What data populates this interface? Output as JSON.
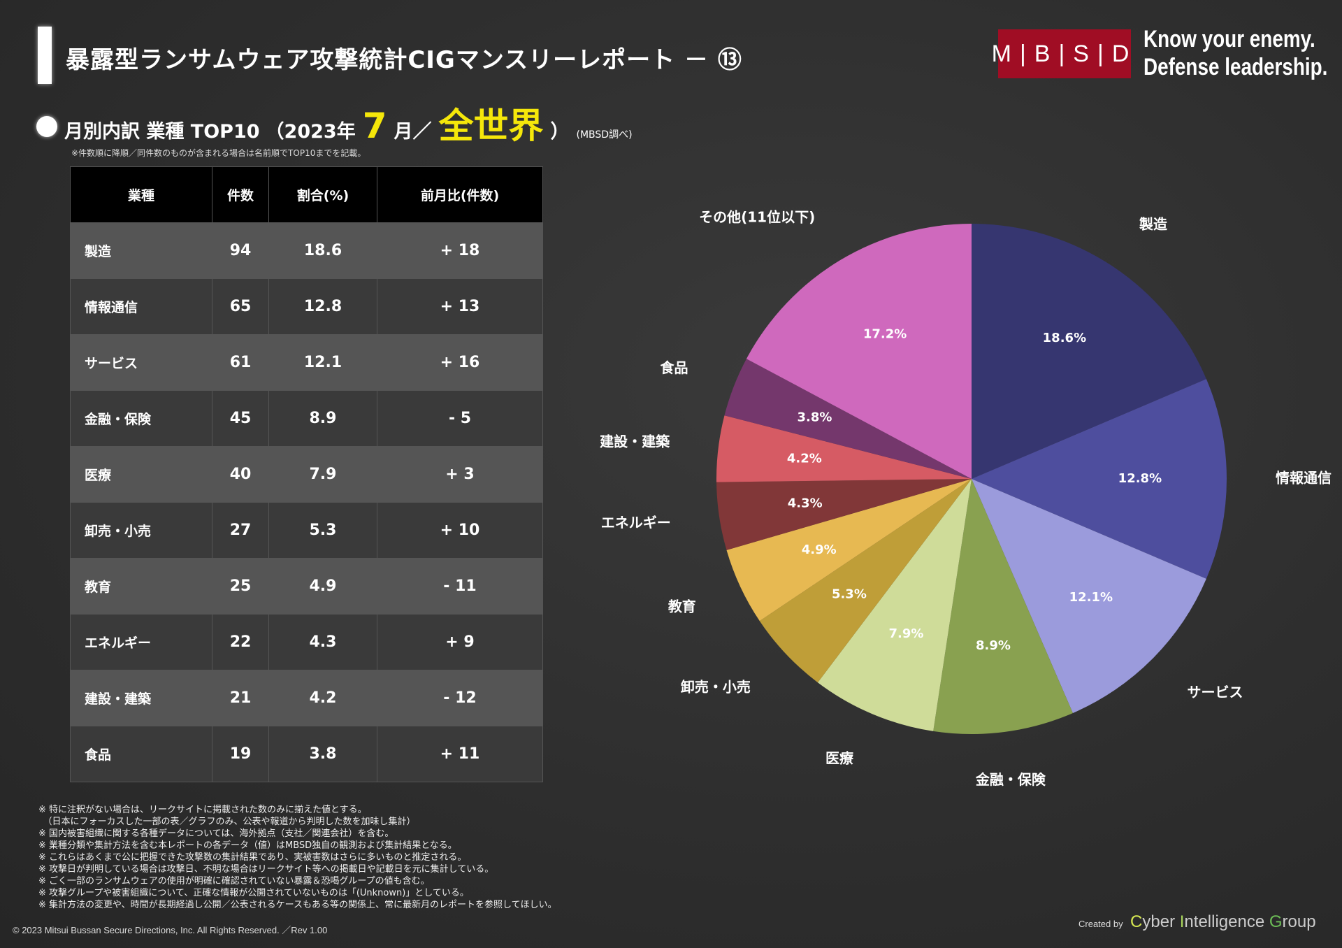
{
  "header": {
    "title": "暴露型ランサムウェア攻撃統計CIGマンスリーレポート － ⑬",
    "logo_text": "M|B|S|D",
    "tagline_1": "Know your enemy.",
    "tagline_2": "Defense leadership."
  },
  "subtitle": {
    "main": "月別内訳 業種 TOP10",
    "period_open": "（2023年",
    "month": "7",
    "month_unit": "月／",
    "region": "全世界",
    "close": "）",
    "source": "(MBSD調べ)"
  },
  "note_top": "※件数順に降順／同件数のものが含まれる場合は名前順でTOP10までを記載。",
  "table": {
    "headers": [
      "業種",
      "件数",
      "割合(%)",
      "前月比(件数)"
    ],
    "rows": [
      {
        "industry": "製造",
        "count": "94",
        "share": "18.6",
        "change": "+ 18"
      },
      {
        "industry": "情報通信",
        "count": "65",
        "share": "12.8",
        "change": "+ 13"
      },
      {
        "industry": "サービス",
        "count": "61",
        "share": "12.1",
        "change": "+ 16"
      },
      {
        "industry": "金融・保険",
        "count": "45",
        "share": "8.9",
        "change": "- 5"
      },
      {
        "industry": "医療",
        "count": "40",
        "share": "7.9",
        "change": "+ 3"
      },
      {
        "industry": "卸売・小売",
        "count": "27",
        "share": "5.3",
        "change": "+ 10"
      },
      {
        "industry": "教育",
        "count": "25",
        "share": "4.9",
        "change": "- 11"
      },
      {
        "industry": "エネルギー",
        "count": "22",
        "share": "4.3",
        "change": "+ 9"
      },
      {
        "industry": "建設・建築",
        "count": "21",
        "share": "4.2",
        "change": "- 12"
      },
      {
        "industry": "食品",
        "count": "19",
        "share": "3.8",
        "change": "+ 11"
      }
    ]
  },
  "chart_data": {
    "type": "pie",
    "start": "top, clockwise",
    "slices": [
      {
        "name": "製造",
        "value": 18.6,
        "label": "18.6%",
        "color": "#363670"
      },
      {
        "name": "情報通信",
        "value": 12.8,
        "label": "12.8%",
        "color": "#4e4e9e"
      },
      {
        "name": "サービス",
        "value": 12.1,
        "label": "12.1%",
        "color": "#9b9bdc"
      },
      {
        "name": "金融・保険",
        "value": 8.9,
        "label": "8.9%",
        "color": "#89a150"
      },
      {
        "name": "医療",
        "value": 7.9,
        "label": "7.9%",
        "color": "#cfdc99"
      },
      {
        "name": "卸売・小売",
        "value": 5.3,
        "label": "5.3%",
        "color": "#bf9e38"
      },
      {
        "name": "教育",
        "value": 4.9,
        "label": "4.9%",
        "color": "#e7b952"
      },
      {
        "name": "エネルギー",
        "value": 4.3,
        "label": "4.3%",
        "color": "#813738"
      },
      {
        "name": "建設・建築",
        "value": 4.2,
        "label": "4.2%",
        "color": "#d65b64"
      },
      {
        "name": "食品",
        "value": 3.8,
        "label": "3.8%",
        "color": "#74376c"
      },
      {
        "name": "その他(11位以下)",
        "value": 17.2,
        "label": "17.2%",
        "color": "#cf69bd"
      }
    ]
  },
  "footnotes": [
    "※ 特に注釈がない場合は、リークサイトに掲載された数のみに揃えた値とする。",
    "　（日本にフォーカスした一部の表／グラフのみ、公表や報道から判明した数を加味し集計）",
    "※ 国内被害組織に関する各種データについては、海外拠点（支社／関連会社）を含む。",
    "※ 業種分類や集計方法を含む本レポートの各データ（値）はMBSD独自の観測および集計結果となる。",
    "※ これらはあくまで公に把握できた攻撃数の集計結果であり、実被害数はさらに多いものと推定される。",
    "※ 攻撃日が判明している場合は攻撃日、不明な場合はリークサイト等への掲載日や記載日を元に集計している。",
    "※ ごく一部のランサムウェアの使用が明確に確認されていない暴露＆恐喝グループの値も含む。",
    "※ 攻撃グループや被害組織について、正確な情報が公開されていないものは「(Unknown)」としている。",
    "※ 集計方法の変更や、時間が長期経過し公開／公表されるケースもある等の関係上、常に最新月のレポートを参照してほしい。"
  ],
  "copyright": "© 2023 Mitsui Bussan Secure Directions, Inc.  All Rights Reserved. ／Rev 1.00",
  "credit": {
    "created_by": "Created by",
    "group_1": "Cyber ",
    "group_2": "Intelligence ",
    "group_3": "Group"
  }
}
